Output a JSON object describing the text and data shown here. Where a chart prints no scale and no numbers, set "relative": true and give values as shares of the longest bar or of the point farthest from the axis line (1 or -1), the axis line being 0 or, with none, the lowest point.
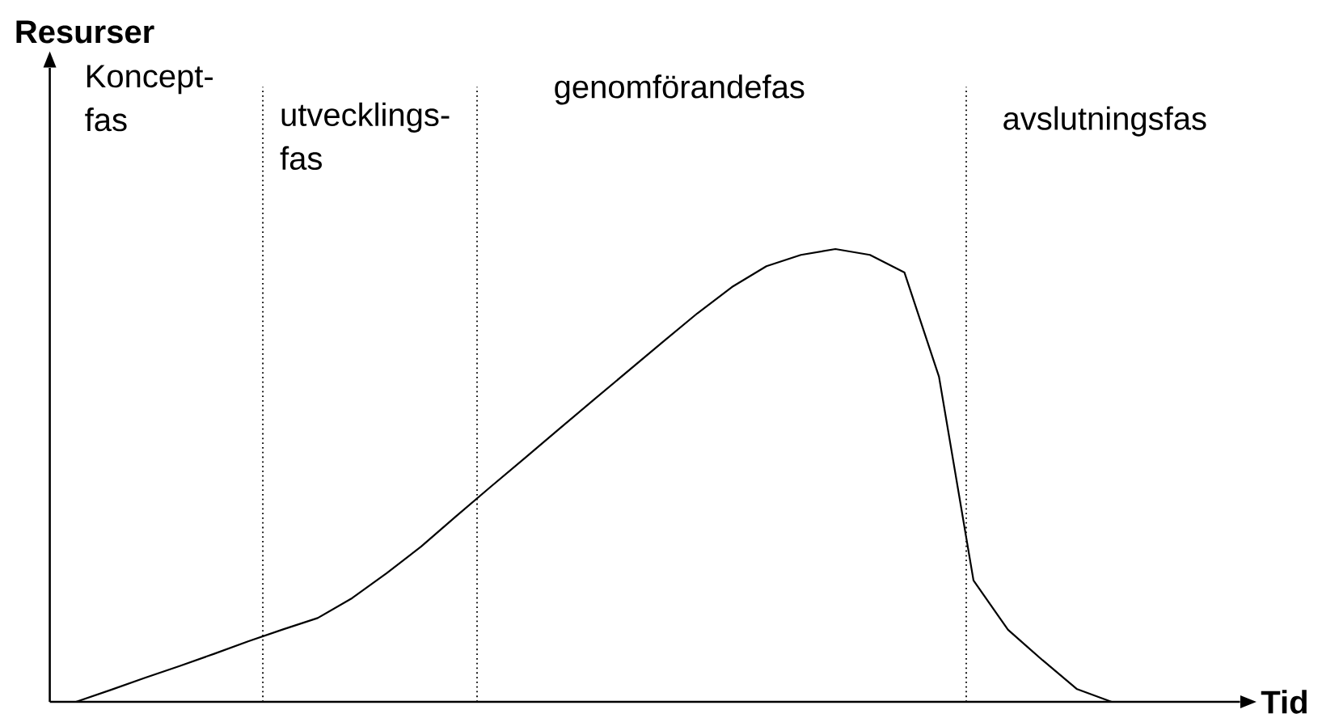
{
  "chart_data": {
    "type": "line",
    "relative": true,
    "xlabel": "Tid",
    "categories": [
      null,
      null,
      null,
      null,
      null,
      null,
      null,
      null,
      null,
      null,
      null,
      null,
      null,
      null,
      null,
      null,
      null,
      null,
      null,
      null,
      null,
      null,
      null,
      null,
      null,
      null,
      null,
      null,
      null,
      null,
      null
    ],
    "series": [
      {
        "color": "#000000",
        "values": [
          0,
          0.026,
          0.053,
          0.079,
          0.106,
          0.134,
          0.16,
          0.185,
          0.229,
          0.284,
          0.343,
          0.409,
          0.474,
          0.538,
          0.603,
          0.667,
          0.731,
          0.795,
          0.858,
          0.916,
          0.962,
          0.987,
          1,
          0.987,
          0.948,
          0.718,
          0.268,
          0.159,
          0.092,
          0.028,
          0
        ]
      }
    ],
    "annotations": [
      "Resurser",
      "Koncept- fas",
      "utvecklings- fas",
      "genomförandefas",
      "avslutningsfas"
    ],
    "marker": "none",
    "line_style": "solid"
  }
}
